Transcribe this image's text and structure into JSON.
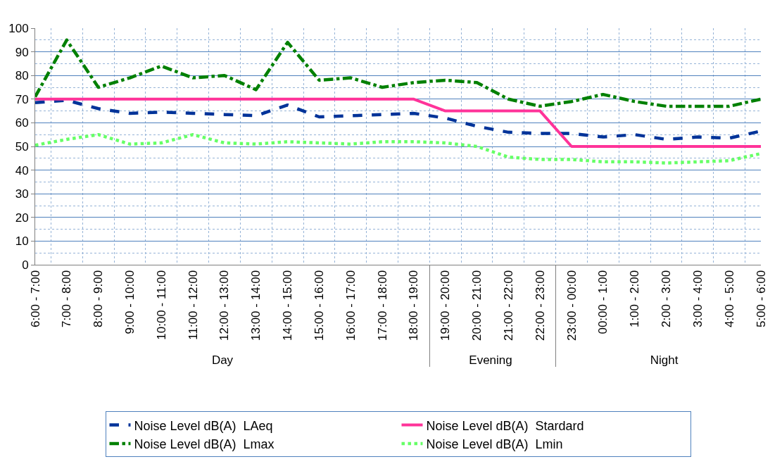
{
  "chart_data": {
    "type": "line",
    "categories": [
      "6:00 - 7:00",
      "7:00 - 8:00",
      "8:00 - 9:00",
      "9:00 - 10:00",
      "10:00 - 11:00",
      "11:00 - 12:00",
      "12:00 - 13:00",
      "13:00 - 14:00",
      "14:00 - 15:00",
      "15:00 - 16:00",
      "16:00 - 17:00",
      "17:00 - 18:00",
      "18:00 - 19:00",
      "19:00 - 20:00",
      "20:00 - 21:00",
      "21:00 - 22:00",
      "22:00 - 23:00",
      "23:00 - 00:00",
      "00:00 - 1:00",
      "1:00 - 2:00",
      "2:00 - 3:00",
      "3:00 - 4:00",
      "4:00 - 5:00",
      "5:00 - 6:00"
    ],
    "annotations": [
      "Day",
      "Evening",
      "Night"
    ],
    "series": [
      {
        "name": "Noise Level dB(A)  LAeq",
        "color": "#003399",
        "line_style": "dashed",
        "values": [
          68.5,
          69.5,
          66,
          64,
          64.5,
          64,
          63.5,
          63,
          67.5,
          62.5,
          63,
          63.5,
          64,
          62,
          58.5,
          56,
          55.5,
          55.5,
          54,
          55,
          53,
          54,
          53.5,
          56.5
        ]
      },
      {
        "name": "Noise Level dB(A)  Stardard",
        "color": "#ff3399",
        "line_style": "solid",
        "values": [
          70,
          70,
          70,
          70,
          70,
          70,
          70,
          70,
          70,
          70,
          70,
          70,
          70,
          65,
          65,
          65,
          65,
          50,
          50,
          50,
          50,
          50,
          50,
          50
        ]
      },
      {
        "name": "Noise Level dB(A)  Lmax",
        "color": "#008000",
        "line_style": "dashdot",
        "values": [
          71,
          95,
          75,
          79,
          84,
          79,
          80,
          74,
          94,
          78,
          79,
          75,
          77,
          78,
          77,
          70,
          67,
          69,
          72,
          69,
          67,
          67,
          67,
          70
        ]
      },
      {
        "name": "Noise Level dB(A)  Lmin",
        "color": "#66ff66",
        "line_style": "dotted",
        "values": [
          50.5,
          53,
          55,
          51,
          51.5,
          55,
          51.5,
          51,
          52,
          51.5,
          51,
          52,
          52,
          51.5,
          50,
          45.5,
          44.5,
          44.5,
          43.5,
          43.5,
          43,
          43.5,
          44,
          47
        ]
      }
    ],
    "ylim": [
      0,
      100
    ],
    "yticks": [
      0,
      10,
      20,
      30,
      40,
      50,
      60,
      70,
      80,
      90,
      100
    ],
    "grid": true,
    "legend": "bottom"
  }
}
